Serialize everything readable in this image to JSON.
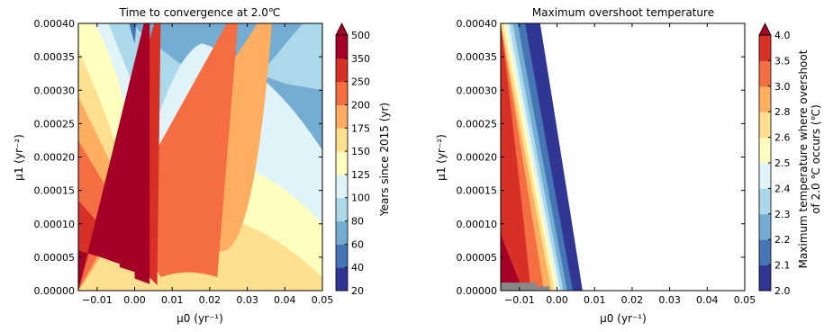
{
  "chart_data": [
    {
      "type": "heatmap",
      "title": "Time to convergence at 2.0℃",
      "xlabel": "μ0 (yr⁻¹)",
      "ylabel": "μ1 (yr⁻²)",
      "xlim": [
        -0.015,
        0.05
      ],
      "ylim": [
        0,
        0.0004
      ],
      "x_ticks": [
        "−0.01",
        "0.00",
        "0.01",
        "0.02",
        "0.03",
        "0.04",
        "0.05"
      ],
      "x_tick_values": [
        -0.01,
        0,
        0.01,
        0.02,
        0.03,
        0.04,
        0.05
      ],
      "y_ticks": [
        "0.00000",
        "0.00005",
        "0.00010",
        "0.00015",
        "0.00020",
        "0.00025",
        "0.00030",
        "0.00035",
        "0.00040"
      ],
      "y_tick_values": [
        0,
        5e-05,
        0.0001,
        0.00015,
        0.0002,
        0.00025,
        0.0003,
        0.00035,
        0.0004
      ],
      "colorbar_label": "Years since 2015 (yr)",
      "colorbar_ticks": [
        "20",
        "40",
        "60",
        "80",
        "100",
        "125",
        "150",
        "175",
        "200",
        "250",
        "350",
        "500"
      ],
      "colorbar_extend": "max",
      "bands": [
        {
          "label": "20–40",
          "color": "#313695"
        },
        {
          "label": "40–60",
          "color": "#4575b4"
        },
        {
          "label": "60–80",
          "color": "#74add1"
        },
        {
          "label": "80–100",
          "color": "#abd9e9"
        },
        {
          "label": "100–125",
          "color": "#e0f3f8"
        },
        {
          "label": "125–150",
          "color": "#ffffbf"
        },
        {
          "label": "150–175",
          "color": "#fee090"
        },
        {
          "label": "175–200",
          "color": "#fdae61"
        },
        {
          "label": "200–250",
          "color": "#f46d43"
        },
        {
          "label": "250–350",
          "color": "#d73027"
        },
        {
          "label": "350–500",
          "color": "#a50026"
        }
      ],
      "extend_color": "#a50026"
    },
    {
      "type": "heatmap",
      "title": "Maximum overshoot temperature",
      "xlabel": "μ0 (yr⁻¹)",
      "ylabel": "μ1 (yr⁻²)",
      "xlim": [
        -0.015,
        0.05
      ],
      "ylim": [
        0,
        0.0004
      ],
      "x_ticks": [
        "−0.01",
        "0.00",
        "0.01",
        "0.02",
        "0.03",
        "0.04",
        "0.05"
      ],
      "x_tick_values": [
        -0.01,
        0,
        0.01,
        0.02,
        0.03,
        0.04,
        0.05
      ],
      "y_ticks": [
        "0.00000",
        "0.00005",
        "0.00010",
        "0.00015",
        "0.00020",
        "0.00025",
        "0.00030",
        "0.00035",
        "0.00040"
      ],
      "y_tick_values": [
        0,
        5e-05,
        0.0001,
        0.00015,
        0.0002,
        0.00025,
        0.0003,
        0.00035,
        0.0004
      ],
      "colorbar_label": "Maximum temperature where overshoot of 2.0 ℃ occurs (℃)",
      "colorbar_label_lines": [
        "Maximum temperature where overshoot",
        "of 2.0 ℃ occurs  (℃)"
      ],
      "colorbar_ticks": [
        "2.0",
        "2.1",
        "2.2",
        "2.3",
        "2.4",
        "2.5",
        "2.6",
        "2.8",
        "3.0",
        "3.5",
        "4.0"
      ],
      "colorbar_extend": "max",
      "bands": [
        {
          "label": "2.0–2.1",
          "color": "#313695"
        },
        {
          "label": "2.1–2.2",
          "color": "#4575b4"
        },
        {
          "label": "2.2–2.3",
          "color": "#74add1"
        },
        {
          "label": "2.3–2.4",
          "color": "#abd9e9"
        },
        {
          "label": "2.4–2.5",
          "color": "#e0f3f8"
        },
        {
          "label": "2.5–2.6",
          "color": "#ffffbf"
        },
        {
          "label": "2.6–2.8",
          "color": "#fee090"
        },
        {
          "label": "2.8–3.0",
          "color": "#fdae61"
        },
        {
          "label": "3.0–3.5",
          "color": "#f46d43"
        },
        {
          "label": "3.5–4.0",
          "color": "#d73027"
        }
      ],
      "extend_color": "#a50026",
      "no_overshoot_region": "white",
      "gray_patch_color": "#888888"
    }
  ]
}
